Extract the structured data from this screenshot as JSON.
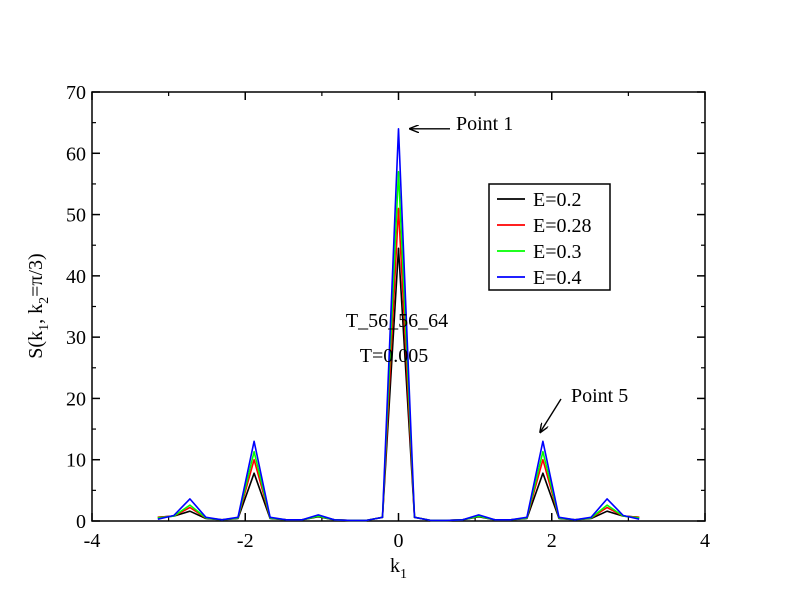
{
  "chart_data": {
    "type": "line",
    "title": "",
    "xlabel": "k",
    "xlabel_sub": "1",
    "ylabel": "S(k",
    "ylabel_parts": [
      "S(k",
      "1",
      ", k",
      "2",
      "=π/3)"
    ],
    "xlim": [
      -4,
      4
    ],
    "ylim": [
      0,
      70
    ],
    "xticks": [
      -4,
      -2,
      0,
      2,
      4
    ],
    "xtick_labels": [
      "-4",
      "-2",
      "0",
      "2",
      "4"
    ],
    "yticks": [
      0,
      10,
      20,
      30,
      40,
      50,
      60,
      70
    ],
    "ytick_labels": [
      "0",
      "10",
      "20",
      "30",
      "40",
      "50",
      "60",
      "70"
    ],
    "grid": false,
    "legend_position": "upper-right",
    "x": [
      -3.1416,
      -2.9322,
      -2.7227,
      -2.5133,
      -2.3038,
      -2.0944,
      -1.885,
      -1.6755,
      -1.4661,
      -1.2566,
      -1.0472,
      -0.8378,
      -0.6283,
      -0.4189,
      -0.2094,
      0.0,
      0.2094,
      0.4189,
      0.6283,
      0.8378,
      1.0472,
      1.2566,
      1.4661,
      1.6755,
      1.885,
      2.0944,
      2.3038,
      2.5133,
      2.7227,
      2.9322,
      3.1416
    ],
    "series": [
      {
        "name": "E=0.2",
        "color": "#000000",
        "values": [
          0.6,
          0.8,
          1.6,
          0.4,
          0.2,
          0.4,
          7.8,
          0.4,
          0.2,
          0.2,
          0.7,
          0.2,
          0.1,
          0.1,
          0.6,
          44.5,
          0.6,
          0.1,
          0.1,
          0.2,
          0.7,
          0.2,
          0.2,
          0.4,
          7.8,
          0.4,
          0.2,
          0.4,
          1.6,
          0.8,
          0.6
        ]
      },
      {
        "name": "E=0.28",
        "color": "#ff0000",
        "values": [
          0.6,
          0.8,
          2.2,
          0.5,
          0.2,
          0.5,
          10.0,
          0.5,
          0.2,
          0.2,
          0.8,
          0.2,
          0.1,
          0.1,
          0.6,
          51.0,
          0.6,
          0.1,
          0.1,
          0.2,
          0.8,
          0.2,
          0.2,
          0.5,
          10.0,
          0.5,
          0.2,
          0.5,
          2.2,
          0.8,
          0.6
        ]
      },
      {
        "name": "E=0.3",
        "color": "#00ff00",
        "values": [
          0.5,
          0.8,
          2.6,
          0.5,
          0.2,
          0.5,
          11.3,
          0.5,
          0.2,
          0.2,
          0.8,
          0.2,
          0.1,
          0.1,
          0.6,
          57.0,
          0.6,
          0.1,
          0.1,
          0.2,
          0.8,
          0.2,
          0.2,
          0.5,
          11.3,
          0.5,
          0.2,
          0.5,
          2.6,
          0.8,
          0.5
        ]
      },
      {
        "name": "E=0.4",
        "color": "#0000ff",
        "values": [
          0.3,
          0.9,
          3.6,
          0.6,
          0.2,
          0.6,
          13.0,
          0.6,
          0.2,
          0.2,
          1.0,
          0.2,
          0.1,
          0.1,
          0.6,
          64.0,
          0.6,
          0.1,
          0.1,
          0.2,
          1.0,
          0.2,
          0.2,
          0.6,
          13.0,
          0.6,
          0.2,
          0.6,
          3.6,
          0.9,
          0.3
        ]
      }
    ],
    "annotations": {
      "label1": "T_56_56_64",
      "label2": "T=0.005",
      "point1": "Point 1",
      "point5": "Point 5"
    },
    "arrow_targets": {
      "point1": [
        0.15,
        64
      ],
      "point5": [
        1.85,
        14.5
      ]
    }
  }
}
